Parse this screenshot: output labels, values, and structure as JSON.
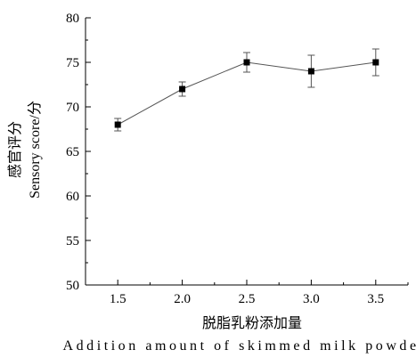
{
  "chart_data": {
    "type": "line",
    "x": [
      1.5,
      2.0,
      2.5,
      3.0,
      3.5
    ],
    "x_tick_labels": [
      "1.5",
      "2.0",
      "2.5",
      "3.0",
      "3.5"
    ],
    "series": [
      {
        "values": [
          68,
          72,
          75,
          74,
          75
        ],
        "errors": [
          0.7,
          0.8,
          1.1,
          1.8,
          1.5
        ]
      }
    ],
    "y_tick_values": [
      50,
      55,
      60,
      65,
      70,
      75,
      80
    ],
    "y_tick_labels": [
      "50",
      "55",
      "60",
      "65",
      "70",
      "75",
      "80"
    ],
    "xlabel_lines": [
      "脱脂乳粉添加量",
      "Addition amount of skimmed milk powder/g"
    ],
    "ylabel_lines": [
      "感官评分",
      "Sensory  score/分"
    ],
    "xlim": [
      1.25,
      3.75
    ],
    "ylim": [
      50,
      80
    ],
    "grid": false,
    "marker": "square",
    "colors": {
      "line": "#555555",
      "marker": "#000000",
      "axis": "#000000"
    }
  }
}
